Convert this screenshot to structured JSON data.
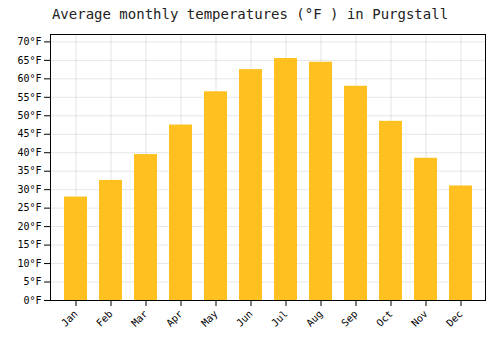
{
  "chart_data": {
    "type": "bar",
    "title": "Average monthly temperatures (°F ) in Purgstall",
    "categories": [
      "Jan",
      "Feb",
      "Mar",
      "Apr",
      "May",
      "Jun",
      "Jul",
      "Aug",
      "Sep",
      "Oct",
      "Nov",
      "Dec"
    ],
    "values": [
      28,
      32.5,
      39.5,
      47.5,
      56.5,
      62.5,
      65.5,
      64.5,
      58,
      48.5,
      38.5,
      31
    ],
    "color": "#FFC020",
    "ylim": [
      0,
      72
    ],
    "yticks": [
      {
        "value": 0,
        "label": "0°F"
      },
      {
        "value": 5,
        "label": "5°F"
      },
      {
        "value": 10,
        "label": "10°F"
      },
      {
        "value": 15,
        "label": "15°F"
      },
      {
        "value": 20,
        "label": "20°F"
      },
      {
        "value": 25,
        "label": "25°F"
      },
      {
        "value": 30,
        "label": "30°F"
      },
      {
        "value": 35,
        "label": "35°F"
      },
      {
        "value": 40,
        "label": "40°F"
      },
      {
        "value": 45,
        "label": "45°F"
      },
      {
        "value": 50,
        "label": "50°F"
      },
      {
        "value": 55,
        "label": "55°F"
      },
      {
        "value": 60,
        "label": "60°F"
      },
      {
        "value": 65,
        "label": "65°F"
      },
      {
        "value": 70,
        "label": "70°F"
      }
    ],
    "grid": true
  }
}
